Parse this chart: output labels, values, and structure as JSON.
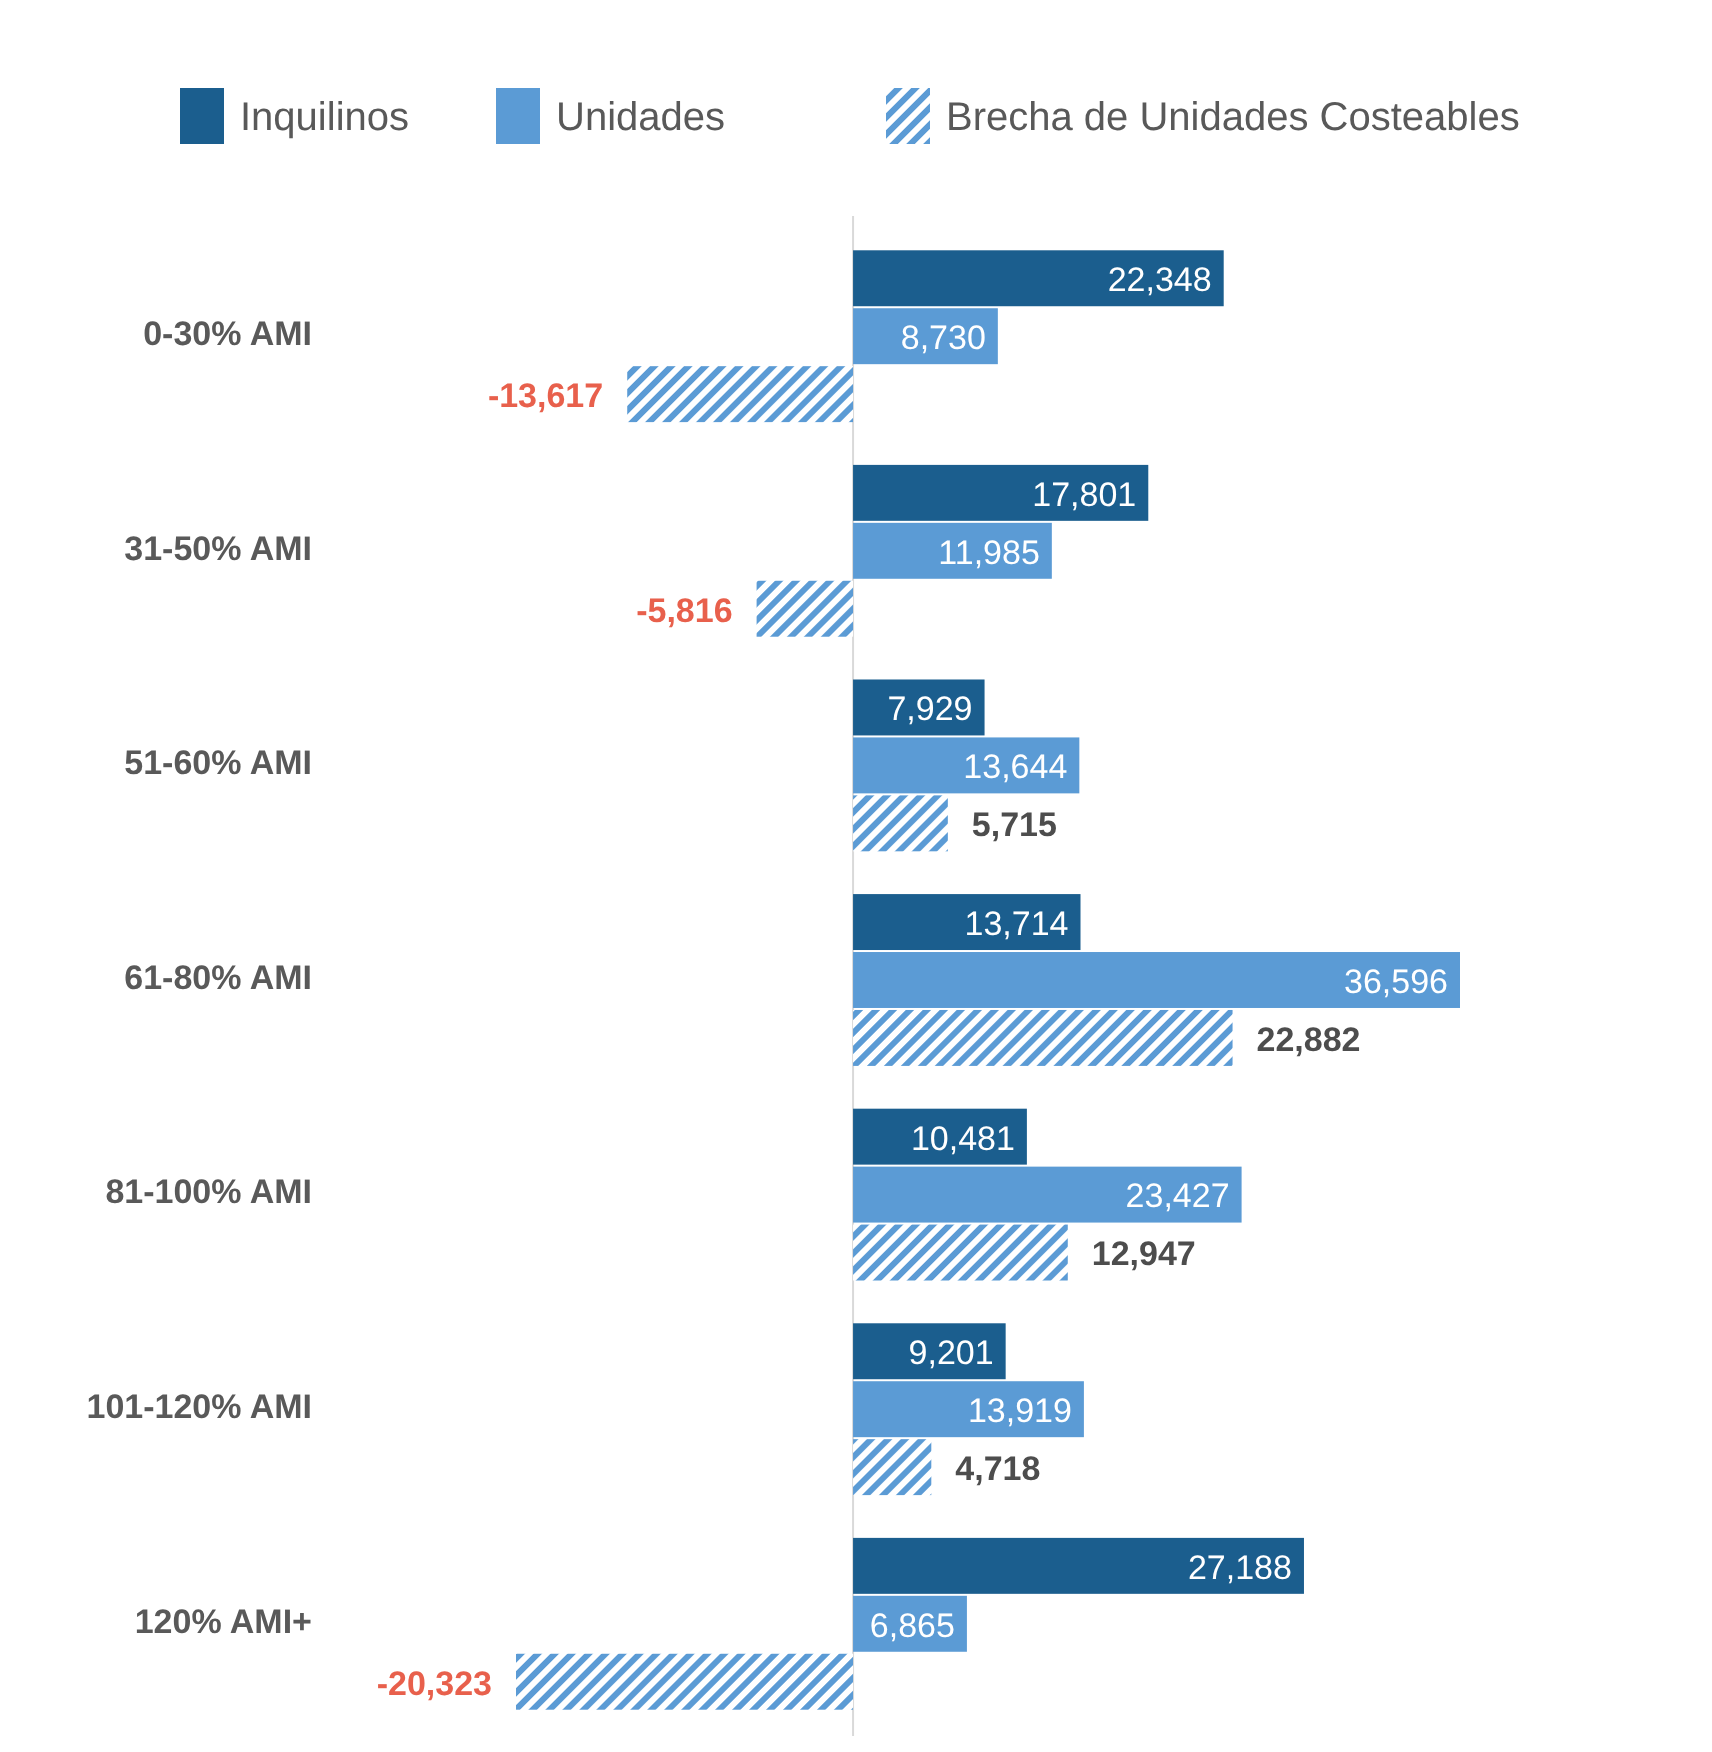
{
  "chart_data": {
    "type": "bar",
    "orientation": "horizontal",
    "categories": [
      "0-30% AMI",
      "31-50% AMI",
      "51-60% AMI",
      "61-80% AMI",
      "81-100% AMI",
      "101-120% AMI",
      "120% AMI+"
    ],
    "series": [
      {
        "name": "Inquilinos",
        "color": "#1b5e8e",
        "values": [
          22348,
          17801,
          7929,
          13714,
          10481,
          9201,
          27188
        ],
        "value_labels": [
          "22,348",
          "17,801",
          "7,929",
          "13,714",
          "10,481",
          "9,201",
          "27,188"
        ]
      },
      {
        "name": "Unidades",
        "color": "#5b9bd5",
        "values": [
          8730,
          11985,
          13644,
          36596,
          23427,
          13919,
          6865
        ],
        "value_labels": [
          "8,730",
          "11,985",
          "13,644",
          "36,596",
          "23,427",
          "13,919",
          "6,865"
        ]
      },
      {
        "name": "Brecha de Unidades Costeables",
        "color": "#5b9bd5",
        "values": [
          -13617,
          -5816,
          5715,
          22882,
          12947,
          4718,
          -20323
        ],
        "value_labels": [
          "-13,617",
          "-5,816",
          "5,715",
          "22,882",
          "12,947",
          "4,718",
          "-20,323"
        ]
      }
    ],
    "legend": "top",
    "grid": false
  }
}
